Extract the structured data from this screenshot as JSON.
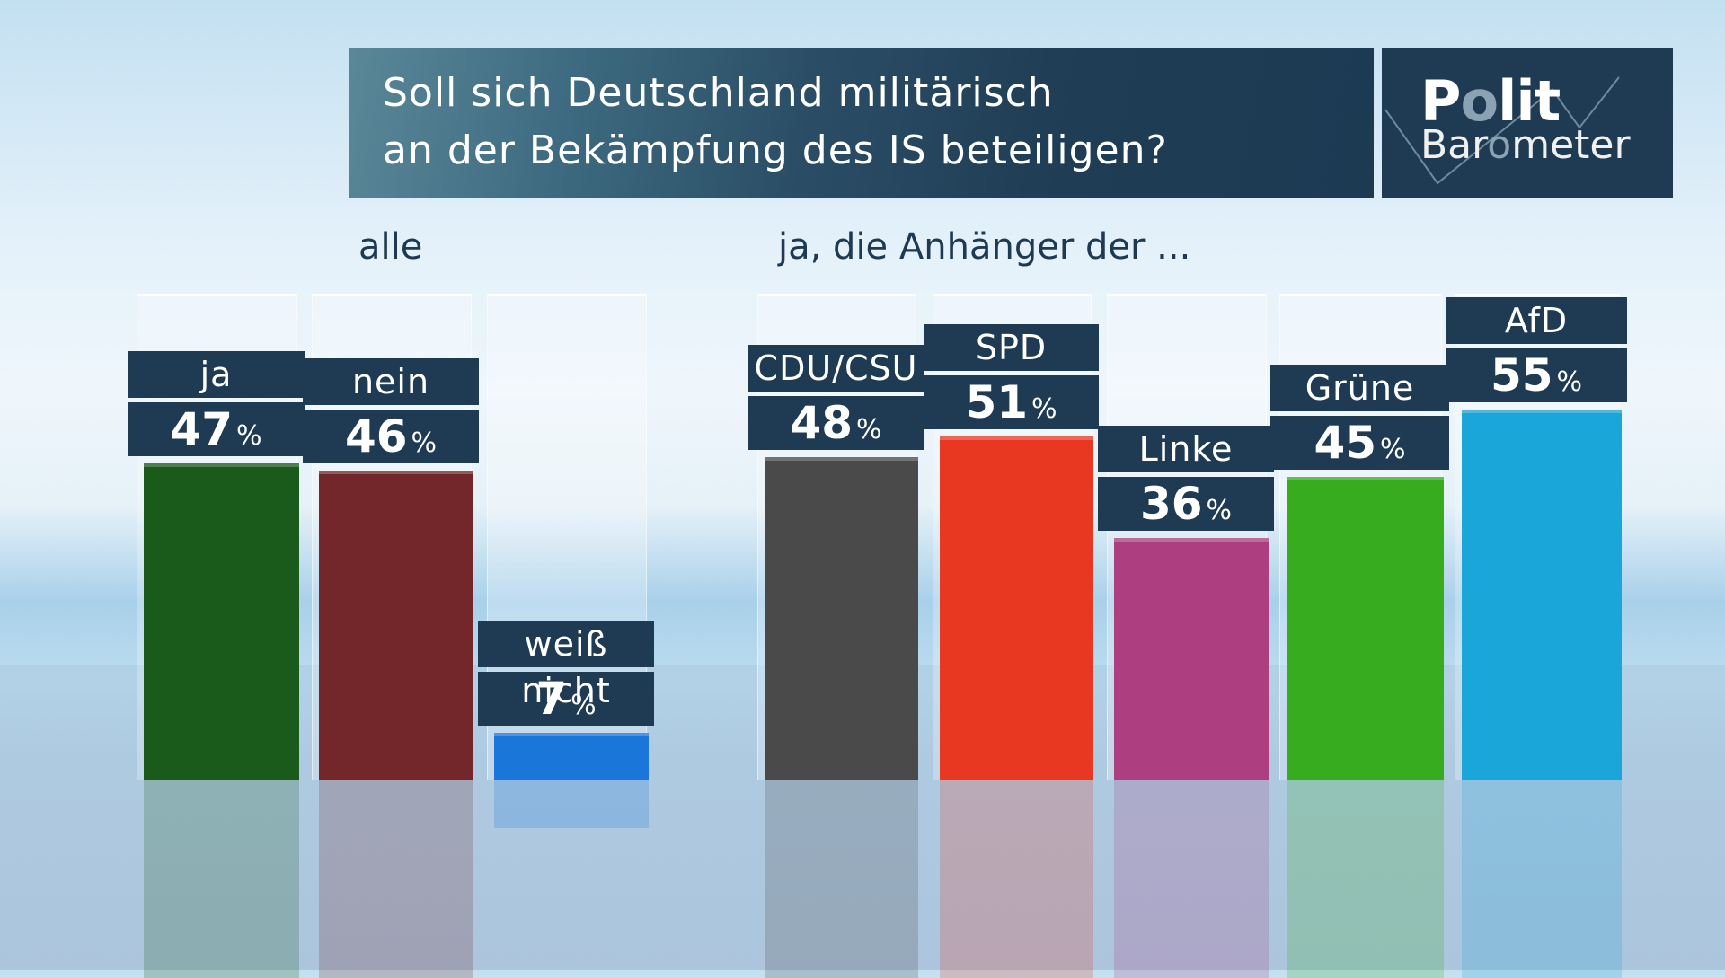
{
  "header": {
    "title_lines": [
      "Soll sich Deutschland militärisch",
      "an der Bekämpfung des IS beteiligen?"
    ],
    "logo": {
      "line1_a": "P",
      "line1_o": "o",
      "line1_b": "lit",
      "line2_a": "Bar",
      "line2_o": "o",
      "line2_b": "meter"
    }
  },
  "chart_data": {
    "type": "bar",
    "title": "Soll sich Deutschland militärisch an der Bekämpfung des IS beteiligen?",
    "xlabel": "",
    "ylabel": "",
    "ylim": [
      0,
      70
    ],
    "unit": "%",
    "groups": [
      {
        "label": "alle",
        "categories": [
          "ja",
          "nein",
          "weiß nicht"
        ],
        "values": [
          47,
          46,
          7
        ],
        "colors": [
          "#1a5a1a",
          "#74272a",
          "#1a76d9"
        ]
      },
      {
        "label": "ja, die Anhänger der ...",
        "categories": [
          "CDU/CSU",
          "SPD",
          "Linke",
          "Grüne",
          "AfD"
        ],
        "values": [
          48,
          51,
          36,
          45,
          55
        ],
        "colors": [
          "#4a4a4a",
          "#e83822",
          "#ad3f80",
          "#37ac1e",
          "#1aa6d8"
        ]
      }
    ]
  }
}
